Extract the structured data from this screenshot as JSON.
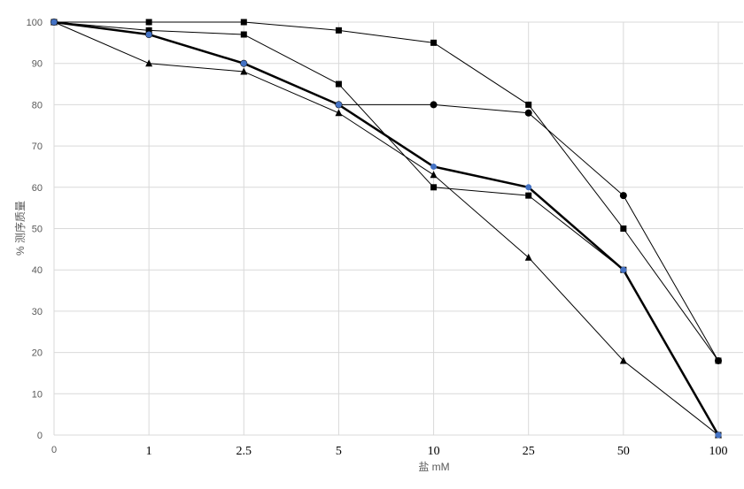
{
  "chart_data": {
    "type": "line",
    "title": "",
    "xlabel": "盐 mM",
    "ylabel": "% 测序质量",
    "categories": [
      "0",
      "1",
      "2.5",
      "5",
      "10",
      "25",
      "50",
      "100"
    ],
    "ylim": [
      0,
      100
    ],
    "yticks": [
      0,
      10,
      20,
      30,
      40,
      50,
      60,
      70,
      80,
      90,
      100
    ],
    "grid": true,
    "legend": "none",
    "series": [
      {
        "marker": "square",
        "color": "#000000",
        "line_weight": "thin",
        "values": [
          100,
          100,
          100,
          98,
          95,
          80,
          50,
          18
        ]
      },
      {
        "marker": "square",
        "color": "#000000",
        "line_weight": "thin",
        "values": [
          100,
          98,
          97,
          85,
          60,
          58,
          40,
          0
        ]
      },
      {
        "marker": "circle",
        "color": "#000000",
        "line_weight": "thin",
        "values": [
          100,
          97,
          90,
          80,
          80,
          78,
          58,
          18
        ]
      },
      {
        "marker": "triangle",
        "color": "#000000",
        "line_weight": "thin",
        "values": [
          100,
          90,
          88,
          78,
          63,
          43,
          18,
          0
        ]
      },
      {
        "marker": "circle",
        "color": "#000000",
        "marker_fill": "#4472c4",
        "line_weight": "bold",
        "values": [
          100,
          97,
          90,
          80,
          65,
          60,
          40,
          0
        ]
      }
    ]
  }
}
